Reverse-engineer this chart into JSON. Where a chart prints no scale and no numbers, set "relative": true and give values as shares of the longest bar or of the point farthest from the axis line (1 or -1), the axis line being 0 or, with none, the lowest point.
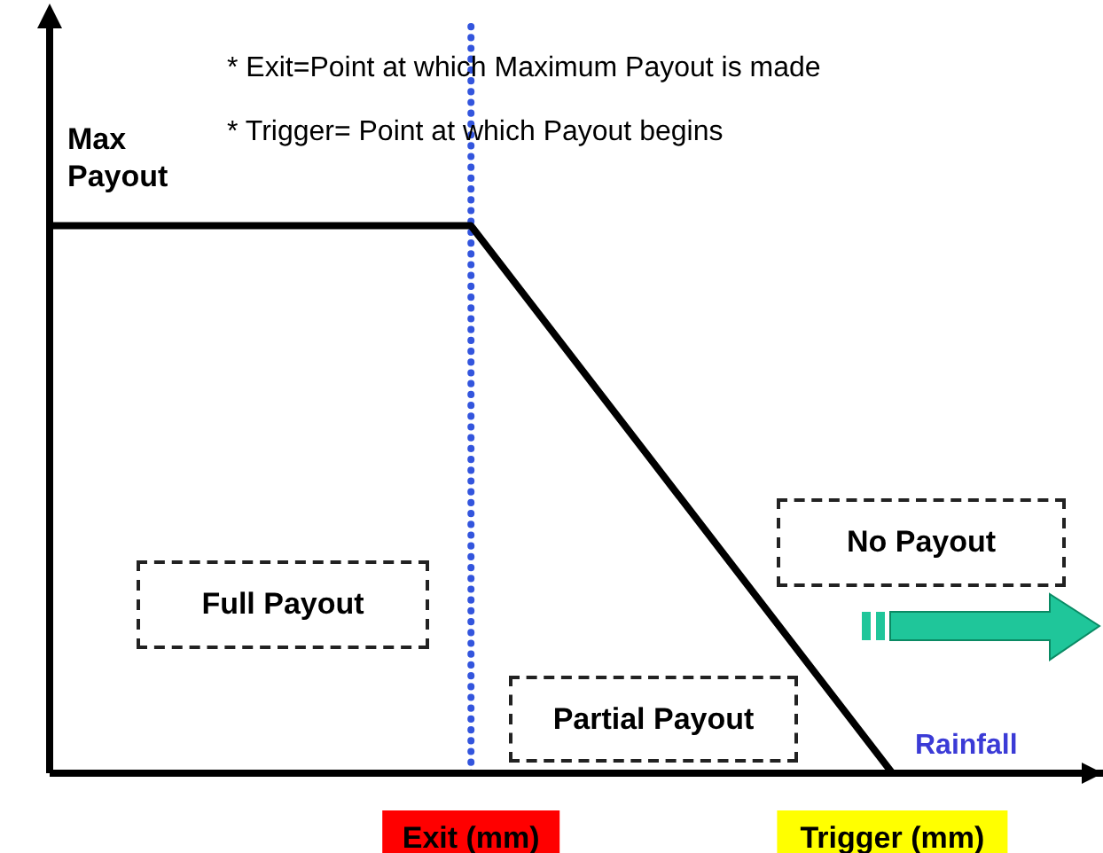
{
  "chart_data": {
    "type": "line",
    "relative": true,
    "categories": [
      null,
      null,
      "Exit (mm)",
      null,
      "Trigger (mm)",
      null
    ],
    "series": [
      {
        "color": "#000000",
        "values": [
          1,
          1,
          1,
          0.5,
          0,
          null
        ]
      }
    ],
    "ylabel": "Max Payout",
    "xlabel": "Rainfall",
    "ref_lines": [
      {
        "axis": "x",
        "value": "Exit (mm)",
        "color": "#3355dd",
        "line_style": "dotted"
      }
    ],
    "annotations": [
      "* Exit=Point at which Maximum Payout is made",
      "* Trigger= Point at which Payout begins",
      "Full Payout",
      "Partial Payout",
      "No Payout"
    ]
  }
}
